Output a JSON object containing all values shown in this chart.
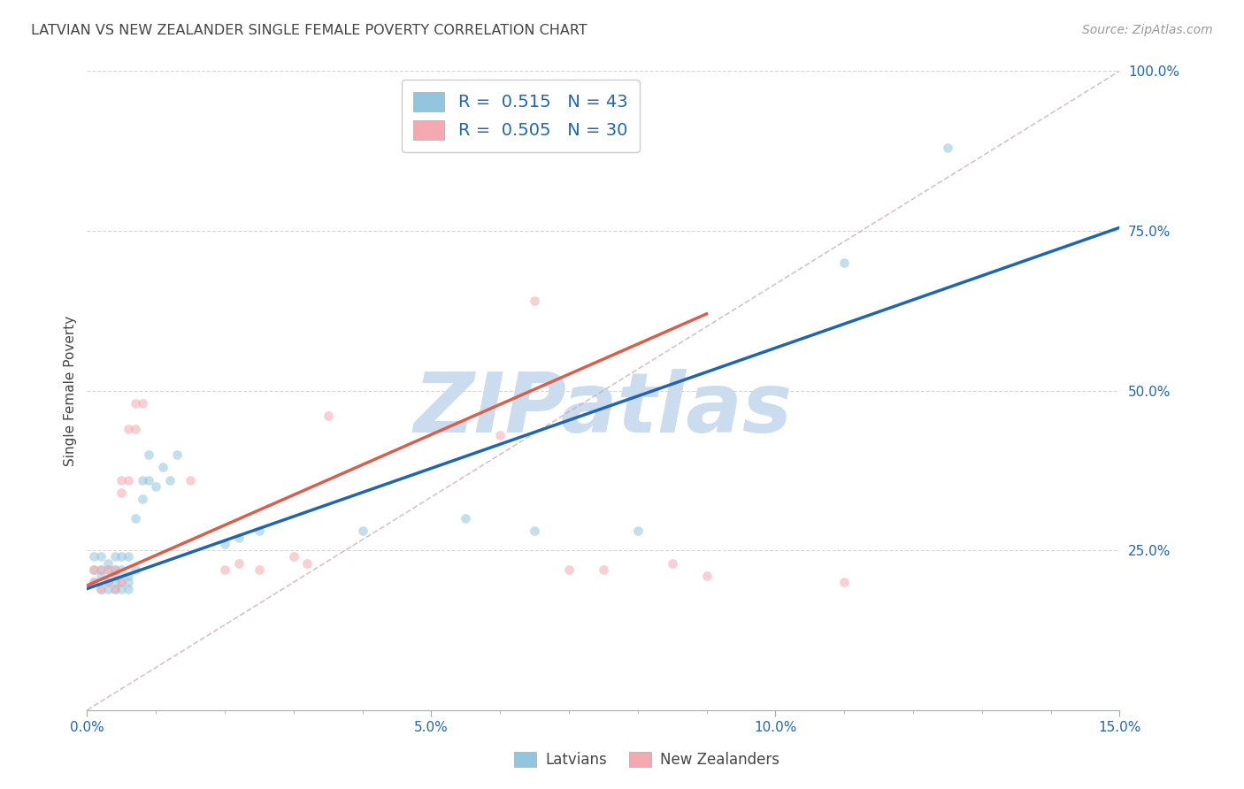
{
  "title": "LATVIAN VS NEW ZEALANDER SINGLE FEMALE POVERTY CORRELATION CHART",
  "source": "Source: ZipAtlas.com",
  "xlabel_latvians": "Latvians",
  "xlabel_nzers": "New Zealanders",
  "ylabel": "Single Female Poverty",
  "xlim": [
    0.0,
    0.15
  ],
  "ylim": [
    0.0,
    1.0
  ],
  "latvian_R": 0.515,
  "latvian_N": 43,
  "nz_R": 0.505,
  "nz_N": 30,
  "latvian_color": "#92c5de",
  "nz_color": "#f4a9b0",
  "latvian_line_color": "#2166ac",
  "nz_line_color": "#d6604d",
  "diag_line_color": "#c8a8b0",
  "watermark_color": "#ccdcef",
  "watermark_text": "ZIPatlas",
  "legend_text_color": "#2166ac",
  "latvian_x": [
    0.001,
    0.001,
    0.001,
    0.002,
    0.002,
    0.002,
    0.002,
    0.003,
    0.003,
    0.003,
    0.003,
    0.004,
    0.004,
    0.004,
    0.004,
    0.004,
    0.005,
    0.005,
    0.005,
    0.005,
    0.006,
    0.006,
    0.006,
    0.006,
    0.007,
    0.007,
    0.008,
    0.008,
    0.009,
    0.009,
    0.01,
    0.011,
    0.012,
    0.013,
    0.02,
    0.022,
    0.025,
    0.04,
    0.055,
    0.065,
    0.08,
    0.11,
    0.125
  ],
  "latvian_y": [
    0.2,
    0.22,
    0.24,
    0.19,
    0.21,
    0.22,
    0.24,
    0.19,
    0.2,
    0.22,
    0.23,
    0.19,
    0.2,
    0.21,
    0.22,
    0.24,
    0.19,
    0.2,
    0.22,
    0.24,
    0.19,
    0.2,
    0.21,
    0.24,
    0.22,
    0.3,
    0.33,
    0.36,
    0.36,
    0.4,
    0.35,
    0.38,
    0.36,
    0.4,
    0.26,
    0.27,
    0.28,
    0.28,
    0.3,
    0.28,
    0.28,
    0.7,
    0.88
  ],
  "nz_x": [
    0.001,
    0.001,
    0.002,
    0.002,
    0.003,
    0.003,
    0.004,
    0.004,
    0.005,
    0.005,
    0.005,
    0.006,
    0.006,
    0.007,
    0.007,
    0.008,
    0.015,
    0.02,
    0.022,
    0.025,
    0.03,
    0.032,
    0.035,
    0.06,
    0.065,
    0.07,
    0.075,
    0.085,
    0.09,
    0.11
  ],
  "nz_y": [
    0.2,
    0.22,
    0.19,
    0.22,
    0.2,
    0.22,
    0.19,
    0.22,
    0.2,
    0.34,
    0.36,
    0.36,
    0.44,
    0.44,
    0.48,
    0.48,
    0.36,
    0.22,
    0.23,
    0.22,
    0.24,
    0.23,
    0.46,
    0.43,
    0.64,
    0.22,
    0.22,
    0.23,
    0.21,
    0.2
  ],
  "latvian_line_x": [
    0.0,
    0.15
  ],
  "latvian_line_y": [
    0.19,
    0.755
  ],
  "nz_line_x": [
    0.0,
    0.09
  ],
  "nz_line_y": [
    0.195,
    0.62
  ],
  "diag_line_x": [
    0.0,
    0.15
  ],
  "diag_line_y": [
    0.0,
    1.0
  ],
  "background_color": "#ffffff",
  "grid_color": "#cccccc",
  "title_color": "#444444",
  "axis_label_color": "#2166ac",
  "tick_label_color": "#2166ac",
  "marker_size": 60,
  "marker_alpha": 0.55
}
